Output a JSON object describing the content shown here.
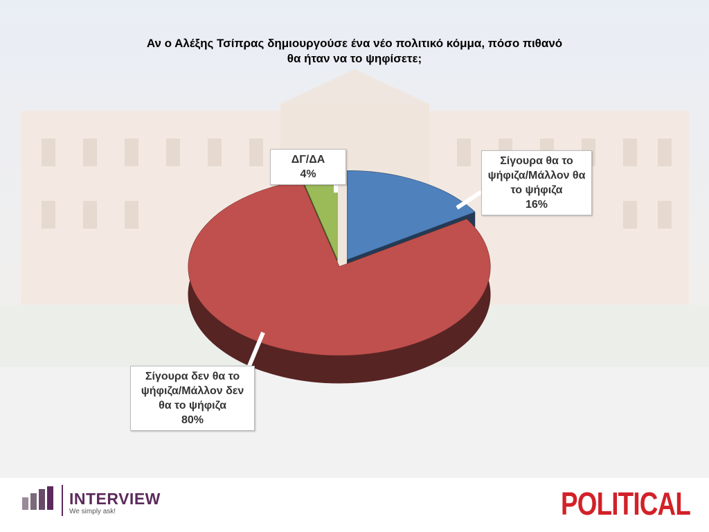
{
  "chart_data": {
    "type": "pie3d",
    "title": "Αν ο Αλέξης Τσίπρας δημιουργούσε ένα νέο πολιτικό κόμμα, πόσο πιθανό θα ήταν να το ψηφίσετε;",
    "categories": [
      "Σίγουρα θα το ψήφιζα/Μάλλον θα το ψήφιζα",
      "Σίγουρα δεν θα το ψήφιζα/Μάλλον δεν θα το ψήφιζα",
      "ΔΓ/ΔΑ"
    ],
    "values": [
      16,
      80,
      4
    ],
    "value_labels": [
      "16%",
      "80%",
      "4%"
    ],
    "colors": [
      "#4f81bd",
      "#c0504d",
      "#9bbb59"
    ]
  },
  "branding": {
    "left": "INTERVIEW",
    "tagline": "We simply ask!",
    "right": "POLITICAL"
  }
}
